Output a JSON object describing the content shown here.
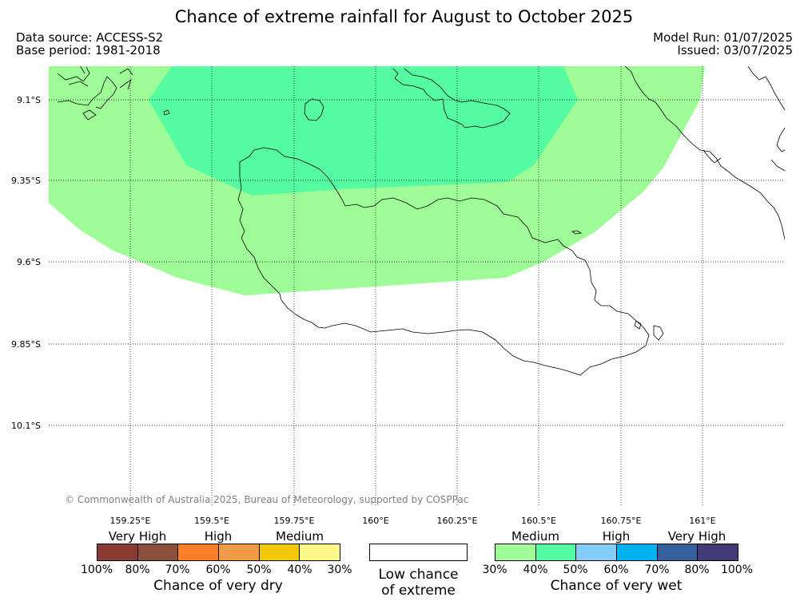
{
  "title": "Chance of extreme rainfall for August to October 2025",
  "meta": {
    "data_source": "Data source: ACCESS-S2",
    "base_period": "Base period: 1981-2018",
    "model_run": "Model Run: 01/07/2025",
    "issued": "Issued: 03/07/2025"
  },
  "map": {
    "lat_labels": [
      "9.1°S",
      "9.35°S",
      "9.6°S",
      "9.85°S",
      "10.1°S"
    ],
    "lon_labels": [
      "159.25°E",
      "159.5°E",
      "159.75°E",
      "160°E",
      "160.25°E",
      "160.5°E",
      "160.75°E",
      "161°E"
    ],
    "copyright": "© Commonwealth of Australia 2025, Bureau of Meteorology, supported by COSPPac",
    "colors": {
      "wet_30_40": "#9efd96",
      "wet_40_50": "#55fca2",
      "grid": "#000000",
      "coast": "#000000"
    }
  },
  "legend": {
    "dry": {
      "sections": [
        "Very High",
        "High",
        "Medium"
      ],
      "ticks": [
        "100%",
        "80%",
        "70%",
        "60%",
        "50%",
        "40%",
        "30%"
      ],
      "colors": [
        "#8b3a32",
        "#8e4e3c",
        "#fc7f2a",
        "#ef9b4a",
        "#f2c90a",
        "#fff78a"
      ],
      "label": "Chance of very dry"
    },
    "low": {
      "line1": "Low chance",
      "line2": "of extreme"
    },
    "wet": {
      "sections": [
        "Medium",
        "High",
        "Very High"
      ],
      "ticks": [
        "30%",
        "40%",
        "50%",
        "60%",
        "70%",
        "80%",
        "100%"
      ],
      "colors": [
        "#9efd96",
        "#55fca2",
        "#84cdfb",
        "#00b2f0",
        "#365f9d",
        "#423b78"
      ],
      "label": "Chance of very wet"
    }
  }
}
